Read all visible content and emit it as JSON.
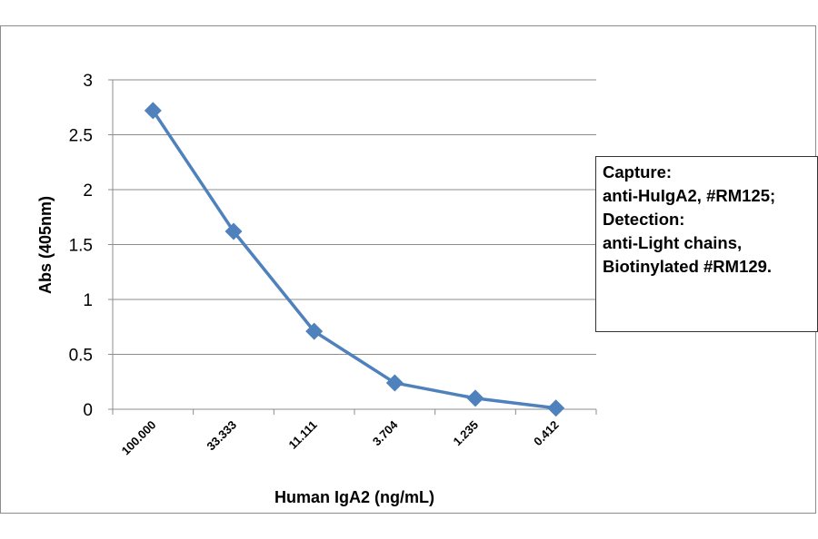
{
  "chart_data": {
    "type": "line",
    "title": "",
    "xlabel": "Human IgA2 (ng/mL)",
    "ylabel": "Abs (405nm)",
    "categories": [
      "100.000",
      "33.333",
      "11.111",
      "3.704",
      "1.235",
      "0.412"
    ],
    "series": [
      {
        "values": [
          2.72,
          1.62,
          0.71,
          0.24,
          0.1,
          0.01
        ]
      }
    ],
    "ylim": [
      0,
      3
    ],
    "yticks": [
      "0",
      "0.5",
      "1",
      "1.5",
      "2",
      "2.5",
      "3"
    ],
    "grid": true,
    "legend": "none",
    "series_color": "#4f81bd",
    "annotation": [
      "Capture:",
      "anti-HuIgA2, #RM125;",
      "Detection:",
      "anti-Light chains,",
      "Biotinylated #RM129."
    ]
  }
}
